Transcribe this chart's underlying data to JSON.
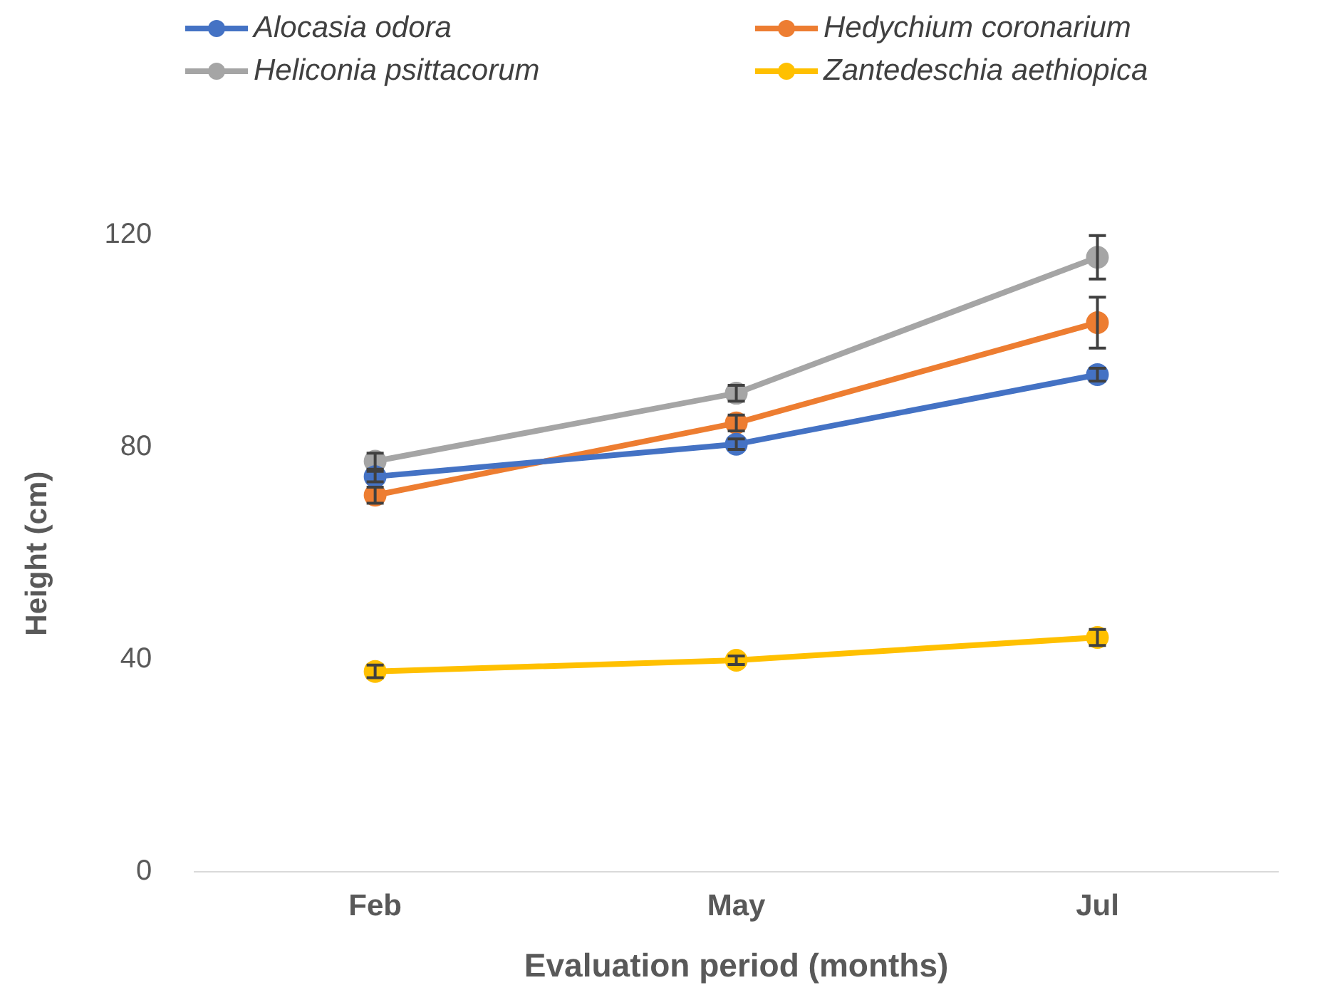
{
  "chart_data": {
    "type": "line",
    "xlabel": "Evaluation period (months)",
    "ylabel": "Height (cm)",
    "categories": [
      "Feb",
      "May",
      "Jul"
    ],
    "series": [
      {
        "name": "Alocasia odora",
        "color": "#4472c4",
        "values": [
          74.5,
          80.6,
          93.7
        ],
        "errors": [
          1,
          1,
          1.2
        ]
      },
      {
        "name": "Hedychium coronarium",
        "color": "#ed7d31",
        "values": [
          71,
          84.6,
          103.5
        ],
        "errors": [
          1.5,
          1.5,
          4.8
        ]
      },
      {
        "name": "Heliconia psittacorum",
        "color": "#a5a5a5",
        "values": [
          77.4,
          90.2,
          115.8
        ],
        "errors": [
          1.5,
          1.5,
          4.1
        ]
      },
      {
        "name": "Zantedeschia aethiopica",
        "color": "#ffc000",
        "values": [
          37.8,
          39.9,
          44.2
        ],
        "errors": [
          1.2,
          0.8,
          1.5
        ]
      }
    ],
    "ylim": [
      0,
      120
    ],
    "yticks": [
      0,
      40,
      80,
      120
    ],
    "grid": false,
    "legend": "top",
    "marker": "circle",
    "line_style": "solid"
  }
}
